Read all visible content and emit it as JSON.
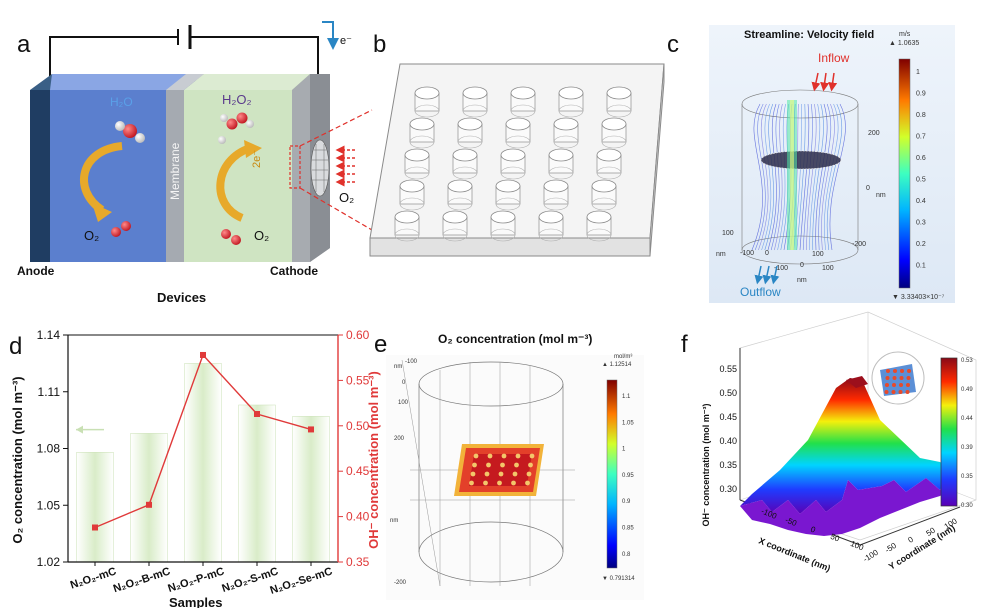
{
  "panel_letters": [
    "a",
    "b",
    "c",
    "d",
    "e",
    "f"
  ],
  "panel_a": {
    "electron": "e⁻",
    "water": "H₂O",
    "membrane": "Membrane",
    "peroxide": "H₂O₂",
    "two_e": "2e⁻",
    "o2_left": "O₂",
    "o2_mid": "O₂",
    "o2_right": "O₂",
    "anode": "Anode",
    "cathode": "Cathode",
    "caption": "Devices"
  },
  "panel_c": {
    "title": "Streamline: Velocity field",
    "unit": "m/s",
    "max_label": "▲ 1.0635",
    "min_label": "▼ 3.33403×10⁻⁷",
    "ticks": [
      "1",
      "0.9",
      "0.8",
      "0.7",
      "0.6",
      "0.5",
      "0.4",
      "0.3",
      "0.2",
      "0.1"
    ],
    "inflow": "Inflow",
    "outflow": "Outflow",
    "axis_labels": [
      "200",
      "0",
      "nm",
      "-200",
      "100",
      "nm",
      "-100",
      "0",
      "100",
      "-100",
      "0",
      "100",
      "nm"
    ],
    "colors": {
      "inflow": "#e0312b",
      "outflow": "#2a86c4"
    }
  },
  "chart_data": {
    "type": "bar",
    "xlabel": "Samples",
    "ylabel": "O₂ concentration (mol m⁻³)",
    "ylabel_right": "OH⁻ concentration (mol m⁻³)",
    "categories": [
      "N₂O₂-mC",
      "N₂O₂-B-mC",
      "N₂O₂-P-mC",
      "N₂O₂-S-mC",
      "N₂O₂-Se-mC"
    ],
    "ylim": [
      1.02,
      1.14
    ],
    "ylim_right": [
      0.35,
      0.6
    ],
    "yticks": [
      "1.02",
      "1.05",
      "1.08",
      "1.11",
      "1.14"
    ],
    "yticks_right": [
      "0.35",
      "0.40",
      "0.45",
      "0.50",
      "0.55",
      "0.60"
    ],
    "series": [
      {
        "axis": "left",
        "kind": "bar",
        "values": [
          1.078,
          1.088,
          1.125,
          1.103,
          1.097
        ]
      },
      {
        "axis": "right",
        "kind": "line",
        "values": [
          0.388,
          0.413,
          0.578,
          0.513,
          0.496
        ]
      }
    ],
    "colors": {
      "bar": "#e8f3dc",
      "bar_edge": "#c9e0b4",
      "line": "#e03a3a",
      "right_axis": "#e03a3a",
      "arrow": "#c9e0b4"
    }
  },
  "panel_e": {
    "title": "O₂ concentration (mol m⁻³)",
    "unit": "mol/m³",
    "max_label": "▲ 1.12514",
    "min_label": "▼ 0.791314",
    "ticks": [
      "1.1",
      "1.05",
      "1",
      "0.95",
      "0.9",
      "0.85",
      "0.8"
    ],
    "axis_labels": [
      "nm",
      "-100",
      "0",
      "100",
      "200",
      "nm",
      "-200"
    ]
  },
  "panel_f": {
    "ylabel": "OH⁻ concentration (mol m⁻³)",
    "yticks": [
      "0.55",
      "0.50",
      "0.45",
      "0.40",
      "0.35",
      "0.30"
    ],
    "xlabel": "X coordinate (nm)",
    "xlabel2": "Y coordinate (nm)",
    "xticks": [
      "-100",
      "-50",
      "0",
      "50",
      "100"
    ],
    "yticks2": [
      "-100",
      "-50",
      "0",
      "50",
      "100"
    ],
    "colorbar_ticks": [
      "0.53",
      "0.49",
      "0.44",
      "0.39",
      "0.35",
      "0.30"
    ]
  }
}
